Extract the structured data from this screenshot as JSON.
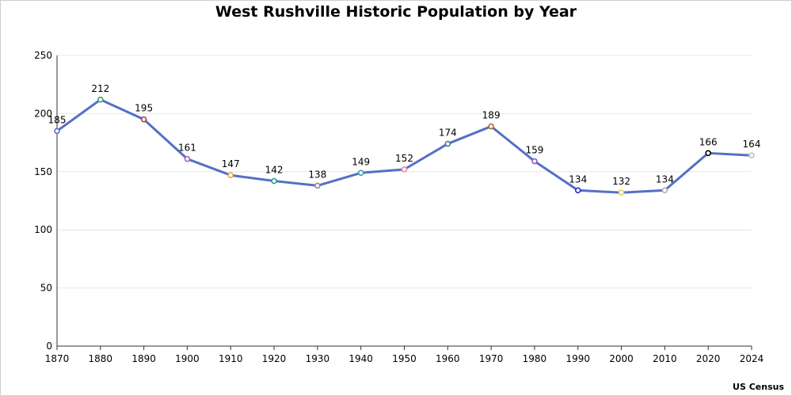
{
  "chart_data": {
    "type": "line",
    "title": "West Rushville Historic Population by Year",
    "source": "US Census",
    "xlabel": "",
    "ylabel": "",
    "ylim": [
      0,
      250
    ],
    "yticks": [
      0,
      50,
      100,
      150,
      200,
      250
    ],
    "grid": true,
    "categories": [
      "1870",
      "1880",
      "1890",
      "1900",
      "1910",
      "1920",
      "1930",
      "1940",
      "1950",
      "1960",
      "1970",
      "1980",
      "1990",
      "2000",
      "2010",
      "2020",
      "2024"
    ],
    "series": [
      {
        "color": "#5470c6",
        "values": [
          185,
          212,
          195,
          161,
          147,
          142,
          138,
          149,
          152,
          174,
          189,
          159,
          134,
          132,
          134,
          166,
          164
        ]
      }
    ],
    "marker_colors": [
      "#5470c6",
      "#3ba272",
      "#c23531",
      "#b05cc6",
      "#f2a33a",
      "#2f9c8e",
      "#8c8c8c",
      "#3aa0a8",
      "#e88aa0",
      "#3d7d9e",
      "#c2652a",
      "#8a5cc6",
      "#1f2fd0",
      "#e6d35a",
      "#b0b0b0",
      "#000000",
      "#c0c0c0"
    ]
  }
}
